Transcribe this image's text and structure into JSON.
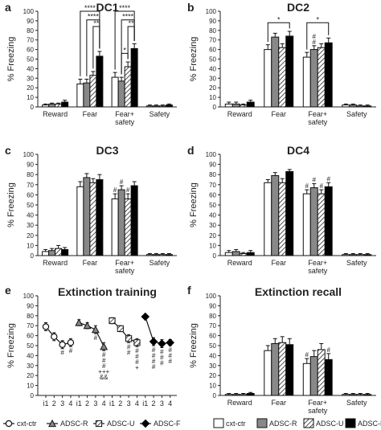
{
  "colors": {
    "cxt_ctr": "#ffffff",
    "adsc_r": "#888888",
    "adsc_u": "hatched",
    "adsc_f": "#000000",
    "axis": "#222222"
  },
  "ylabel": "% Freezing",
  "bar_groups": [
    "Reward",
    "Fear",
    "Fear+ safety",
    "Safety"
  ],
  "groups": [
    "cxt-ctr",
    "ADSC-R",
    "ADSC-U",
    "ADSC-F"
  ],
  "legend_left": {
    "items": [
      "cxt-ctr",
      "ADSC-R",
      "ADSC-U",
      "ADSC-F"
    ],
    "marker_icons": [
      "circle-marker",
      "triangle-marker",
      "square-marker",
      "diamond-marker"
    ]
  },
  "legend_right": {
    "items": [
      "cxt-ctr",
      "ADSC-R",
      "ADSC-U",
      "ADSC-F"
    ],
    "swatch_icons": [
      "white-swatch",
      "gray-swatch",
      "hatched-swatch",
      "black-swatch"
    ]
  },
  "chart_data": [
    {
      "panel": "a",
      "title": "DC1",
      "type": "bar",
      "ylabel": "% Freezing",
      "ylim": [
        0,
        100
      ],
      "yticks": [
        0,
        10,
        20,
        30,
        40,
        50,
        60,
        70,
        80,
        90,
        100
      ],
      "categories": [
        "Reward",
        "Fear",
        "Fear+ safety",
        "Safety"
      ],
      "series": [
        {
          "name": "cxt-ctr",
          "values": [
            2,
            24,
            31,
            1
          ],
          "err": [
            1,
            5,
            5,
            1
          ]
        },
        {
          "name": "ADSC-R",
          "values": [
            3,
            25,
            27,
            1
          ],
          "err": [
            1,
            4,
            4,
            1
          ]
        },
        {
          "name": "ADSC-U",
          "values": [
            3,
            33,
            42,
            1
          ],
          "err": [
            1,
            4,
            5,
            1
          ]
        },
        {
          "name": "ADSC-F",
          "values": [
            5,
            53,
            61,
            2
          ],
          "err": [
            2,
            5,
            5,
            1
          ]
        }
      ],
      "brackets": [
        {
          "cat": 1,
          "from": 0,
          "to": 3,
          "level": 100,
          "label": "****"
        },
        {
          "cat": 1,
          "from": 1,
          "to": 3,
          "level": 91,
          "label": "****"
        },
        {
          "cat": 1,
          "from": 2,
          "to": 3,
          "level": 84,
          "label": "**"
        },
        {
          "cat": 2,
          "from": 0,
          "to": 3,
          "level": 100,
          "label": "****"
        },
        {
          "cat": 2,
          "from": 1,
          "to": 3,
          "level": 91,
          "label": "****"
        },
        {
          "cat": 2,
          "from": 2,
          "to": 3,
          "level": 84,
          "label": "**"
        },
        {
          "cat": 2,
          "from": 1,
          "to": 2,
          "level": 56,
          "label": "*"
        }
      ],
      "marks": []
    },
    {
      "panel": "b",
      "title": "DC2",
      "type": "bar",
      "ylabel": "% Freezing",
      "ylim": [
        0,
        100
      ],
      "yticks": [
        0,
        10,
        20,
        30,
        40,
        50,
        60,
        70,
        80,
        90,
        100
      ],
      "categories": [
        "Reward",
        "Fear",
        "Fear+ safety",
        "Safety"
      ],
      "series": [
        {
          "name": "cxt-ctr",
          "values": [
            3,
            60,
            52,
            2
          ],
          "err": [
            2,
            5,
            5,
            1
          ]
        },
        {
          "name": "ADSC-R",
          "values": [
            3,
            73,
            60,
            2
          ],
          "err": [
            2,
            4,
            4,
            1
          ]
        },
        {
          "name": "ADSC-U",
          "values": [
            2,
            62,
            62,
            1
          ],
          "err": [
            1,
            4,
            4,
            1
          ]
        },
        {
          "name": "ADSC-F",
          "values": [
            5,
            74,
            67,
            1
          ],
          "err": [
            2,
            5,
            5,
            1
          ]
        }
      ],
      "brackets": [
        {
          "cat": 1,
          "from": 0,
          "to": 3,
          "level": 88,
          "label": "*"
        },
        {
          "cat": 2,
          "from": 0,
          "to": 3,
          "level": 88,
          "label": "*"
        }
      ],
      "marks": [
        {
          "cat": 2,
          "bar": 1,
          "label": "#"
        },
        {
          "cat": 2,
          "bar": 1,
          "label": "#"
        }
      ]
    },
    {
      "panel": "c",
      "title": "DC3",
      "type": "bar",
      "ylabel": "% Freezing",
      "ylim": [
        0,
        100
      ],
      "yticks": [
        0,
        10,
        20,
        30,
        40,
        50,
        60,
        70,
        80,
        90,
        100
      ],
      "categories": [
        "Reward",
        "Fear",
        "Fear+ safety",
        "Safety"
      ],
      "series": [
        {
          "name": "cxt-ctr",
          "values": [
            4,
            68,
            56,
            1
          ],
          "err": [
            2,
            5,
            5,
            1
          ]
        },
        {
          "name": "ADSC-R",
          "values": [
            5,
            77,
            65,
            1
          ],
          "err": [
            2,
            4,
            4,
            1
          ]
        },
        {
          "name": "ADSC-U",
          "values": [
            7,
            72,
            56,
            1
          ],
          "err": [
            3,
            4,
            5,
            1
          ]
        },
        {
          "name": "ADSC-F",
          "values": [
            6,
            75,
            69,
            1
          ],
          "err": [
            2,
            5,
            4,
            1
          ]
        }
      ],
      "brackets": [],
      "marks": [
        {
          "cat": 2,
          "bar": 0,
          "label": "#"
        },
        {
          "cat": 2,
          "bar": 1,
          "label": "#"
        },
        {
          "cat": 2,
          "bar": 2,
          "label": "#"
        }
      ]
    },
    {
      "panel": "d",
      "title": "DC4",
      "type": "bar",
      "ylabel": "% Freezing",
      "ylim": [
        0,
        100
      ],
      "yticks": [
        0,
        10,
        20,
        30,
        40,
        50,
        60,
        70,
        80,
        90,
        100
      ],
      "categories": [
        "Reward",
        "Fear",
        "Fear+ safety",
        "Safety"
      ],
      "series": [
        {
          "name": "cxt-ctr",
          "values": [
            3,
            72,
            61,
            1
          ],
          "err": [
            2,
            3,
            4,
            1
          ]
        },
        {
          "name": "ADSC-R",
          "values": [
            4,
            79,
            67,
            1
          ],
          "err": [
            2,
            3,
            4,
            1
          ]
        },
        {
          "name": "ADSC-U",
          "values": [
            2,
            72,
            61,
            1
          ],
          "err": [
            1,
            4,
            4,
            1
          ]
        },
        {
          "name": "ADSC-F",
          "values": [
            3,
            83,
            68,
            1
          ],
          "err": [
            2,
            2,
            4,
            1
          ]
        }
      ],
      "brackets": [],
      "marks": [
        {
          "cat": 2,
          "bar": 0,
          "label": "#"
        },
        {
          "cat": 2,
          "bar": 1,
          "label": "#"
        },
        {
          "cat": 2,
          "bar": 2,
          "label": "#"
        },
        {
          "cat": 2,
          "bar": 3,
          "label": "#"
        }
      ]
    },
    {
      "panel": "e",
      "title": "Extinction training",
      "type": "line",
      "ylabel": "% Freezing",
      "ylim": [
        0,
        100
      ],
      "yticks": [
        0,
        10,
        20,
        30,
        40,
        50,
        60,
        70,
        80,
        90,
        100
      ],
      "x_ticks": [
        "i1",
        "2",
        "3",
        "4",
        "i1",
        "2",
        "3",
        "4",
        "i1",
        "2",
        "3",
        "4",
        "i1",
        "2",
        "3",
        "4"
      ],
      "series": [
        {
          "name": "cxt-ctr",
          "marker": "circle",
          "values": [
            69,
            59,
            51,
            53
          ],
          "err": [
            4,
            4,
            4,
            4
          ]
        },
        {
          "name": "ADSC-R",
          "marker": "triangle",
          "values": [
            73,
            70,
            66,
            49
          ],
          "err": [
            3,
            3,
            4,
            4
          ]
        },
        {
          "name": "ADSC-U",
          "marker": "square",
          "values": [
            75,
            67,
            57,
            53
          ],
          "err": [
            3,
            3,
            4,
            4
          ]
        },
        {
          "name": "ADSC-F",
          "marker": "diamond",
          "values": [
            79,
            54,
            52,
            53
          ],
          "err": [
            2,
            4,
            4,
            3
          ]
        }
      ],
      "annotations": [
        {
          "series": 0,
          "point": 2,
          "lines": [
            "#"
          ]
        },
        {
          "series": 0,
          "point": 3,
          "lines": [
            "#"
          ]
        },
        {
          "series": 1,
          "point": 2,
          "lines": [
            "#"
          ]
        },
        {
          "series": 1,
          "point": 3,
          "lines": [
            "#",
            "#",
            "#",
            "+++",
            "&&"
          ]
        },
        {
          "series": 2,
          "point": 2,
          "lines": [
            "#",
            "#"
          ]
        },
        {
          "series": 2,
          "point": 3,
          "lines": [
            "#",
            "#",
            "#",
            "+"
          ]
        },
        {
          "series": 3,
          "point": 1,
          "lines": [
            "#",
            "#",
            "#",
            "#"
          ]
        },
        {
          "series": 3,
          "point": 2,
          "lines": [
            "#",
            "#",
            "#"
          ]
        },
        {
          "series": 3,
          "point": 3,
          "lines": [
            "#",
            "#",
            "#"
          ]
        }
      ]
    },
    {
      "panel": "f",
      "title": "Extinction recall",
      "type": "bar",
      "ylabel": "% Freezing",
      "ylim": [
        0,
        100
      ],
      "yticks": [
        0,
        10,
        20,
        30,
        40,
        50,
        60,
        70,
        80,
        90,
        100
      ],
      "categories": [
        "Reward",
        "Fear",
        "Fear+ safety",
        "Safety"
      ],
      "series": [
        {
          "name": "cxt-ctr",
          "values": [
            1,
            45,
            32,
            1
          ],
          "err": [
            1,
            5,
            5,
            1
          ]
        },
        {
          "name": "ADSC-R",
          "values": [
            1,
            52,
            39,
            1
          ],
          "err": [
            1,
            5,
            6,
            1
          ]
        },
        {
          "name": "ADSC-U",
          "values": [
            1,
            53,
            46,
            1
          ],
          "err": [
            1,
            6,
            6,
            1
          ]
        },
        {
          "name": "ADSC-F",
          "values": [
            2,
            51,
            36,
            1
          ],
          "err": [
            1,
            6,
            6,
            1
          ]
        }
      ],
      "brackets": [],
      "marks": [
        {
          "cat": 2,
          "bar": 0,
          "label": "#"
        },
        {
          "cat": 2,
          "bar": 3,
          "label": "#"
        }
      ]
    }
  ]
}
